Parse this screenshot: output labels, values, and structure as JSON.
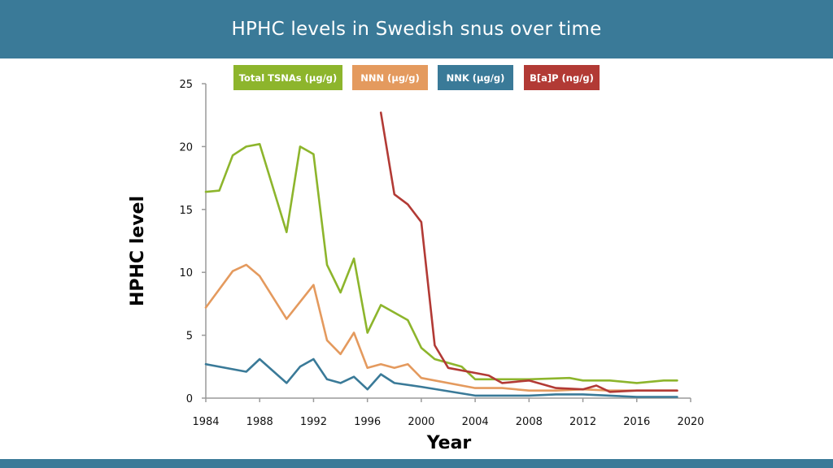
{
  "header": {
    "title": "HPHC levels in Swedish snus over time"
  },
  "colors": {
    "header_bg": "#3a7a98",
    "tsna": "#8db52c",
    "nnn": "#e49a5e",
    "nnk": "#3a7a98",
    "bap": "#b23a35"
  },
  "chart_data": {
    "type": "line",
    "title": "HPHC levels in Swedish snus over time",
    "xlabel": "Year",
    "ylabel": "HPHC level",
    "xlim": [
      1984,
      2020
    ],
    "ylim": [
      0,
      25
    ],
    "xticks": [
      "1984",
      "1988",
      "1992",
      "1996",
      "2000",
      "2004",
      "2008",
      "2012",
      "2016",
      "2020"
    ],
    "yticks": [
      "0",
      "5",
      "10",
      "15",
      "20",
      "25"
    ],
    "grid": false,
    "legend_position": "top",
    "series": [
      {
        "name": "Total TSNAs (µg/g)",
        "color": "#8db52c",
        "x": [
          1984,
          1985,
          1986,
          1987,
          1988,
          1990,
          1991,
          1992,
          1993,
          1994,
          1995,
          1996,
          1997,
          1999,
          2000,
          2001,
          2003,
          2004,
          2006,
          2008,
          2011,
          2012,
          2014,
          2016,
          2018,
          2019
        ],
        "y": [
          16.4,
          16.5,
          19.3,
          20.0,
          20.2,
          13.2,
          20.0,
          19.4,
          10.6,
          8.4,
          11.1,
          5.2,
          7.4,
          6.2,
          4.0,
          3.1,
          2.5,
          1.5,
          1.5,
          1.5,
          1.6,
          1.4,
          1.4,
          1.2,
          1.4,
          1.4
        ]
      },
      {
        "name": "NNN (µg/g)",
        "color": "#e49a5e",
        "x": [
          1984,
          1986,
          1987,
          1988,
          1990,
          1992,
          1993,
          1994,
          1995,
          1996,
          1997,
          1998,
          1999,
          2000,
          2004,
          2006,
          2008,
          2010,
          2012,
          2014,
          2016,
          2019
        ],
        "y": [
          7.2,
          10.1,
          10.6,
          9.7,
          6.3,
          9.0,
          4.6,
          3.5,
          5.2,
          2.4,
          2.7,
          2.4,
          2.7,
          1.6,
          0.8,
          0.8,
          0.6,
          0.6,
          0.7,
          0.6,
          0.6,
          0.6
        ]
      },
      {
        "name": "NNK (µg/g)",
        "color": "#3a7a98",
        "x": [
          1984,
          1987,
          1988,
          1990,
          1991,
          1992,
          1993,
          1994,
          1995,
          1996,
          1997,
          1998,
          2000,
          2004,
          2008,
          2010,
          2012,
          2016,
          2019
        ],
        "y": [
          2.7,
          2.1,
          3.1,
          1.2,
          2.5,
          3.1,
          1.5,
          1.2,
          1.7,
          0.7,
          1.9,
          1.2,
          0.9,
          0.2,
          0.2,
          0.3,
          0.3,
          0.1,
          0.1
        ]
      },
      {
        "name": "B[a]P (ng/g)",
        "color": "#b23a35",
        "x": [
          1997,
          1998,
          1999,
          2000,
          2001,
          2002,
          2004,
          2005,
          2006,
          2008,
          2010,
          2012,
          2013,
          2014,
          2016,
          2019
        ],
        "y": [
          22.7,
          16.2,
          15.4,
          14.0,
          4.2,
          2.4,
          2.0,
          1.8,
          1.2,
          1.4,
          0.8,
          0.7,
          1.0,
          0.5,
          0.6,
          0.6
        ]
      }
    ]
  }
}
